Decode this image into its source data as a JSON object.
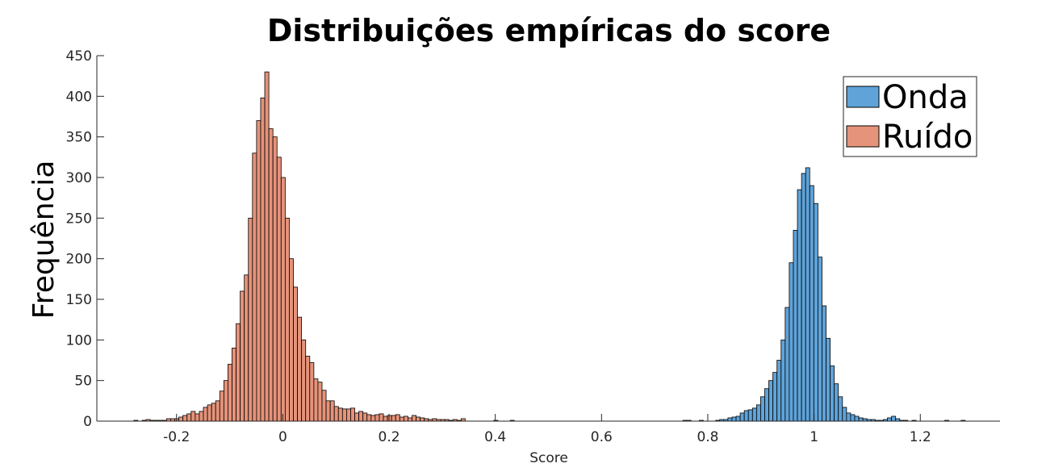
{
  "chart_data": {
    "type": "bar",
    "title": "Distribuições empíricas do score",
    "xlabel": "Score",
    "ylabel": "Frequência",
    "xlim": [
      -0.35,
      1.35
    ],
    "ylim": [
      0,
      450
    ],
    "xticks": [
      -0.2,
      0,
      0.2,
      0.4,
      0.6,
      0.8,
      1,
      1.2
    ],
    "xtick_labels": [
      "-0.2",
      "0",
      "0.2",
      "0.4",
      "0.6",
      "0.8",
      "1",
      "1.2"
    ],
    "yticks": [
      0,
      50,
      100,
      150,
      200,
      250,
      300,
      350,
      400,
      450
    ],
    "ytick_labels": [
      "0",
      "50",
      "100",
      "150",
      "200",
      "250",
      "300",
      "350",
      "400",
      "450"
    ],
    "grid": false,
    "legend_position": "top-right",
    "bin_width": 0.0077,
    "series": [
      {
        "name": "Onda",
        "color": "#5fa3d9",
        "x": [
          0.757,
          0.7647,
          0.7724,
          0.7801,
          0.7878,
          0.7955,
          0.8032,
          0.8109,
          0.8186,
          0.8263,
          0.834,
          0.8417,
          0.8494,
          0.8571,
          0.8648,
          0.8725,
          0.8802,
          0.8879,
          0.8956,
          0.9033,
          0.911,
          0.9187,
          0.9264,
          0.9341,
          0.9418,
          0.9495,
          0.9572,
          0.9649,
          0.9726,
          0.9803,
          0.988,
          0.9957,
          1.0034,
          1.0111,
          1.0188,
          1.0265,
          1.0342,
          1.0419,
          1.0496,
          1.0573,
          1.065,
          1.0727,
          1.0804,
          1.0881,
          1.0958,
          1.1035,
          1.1112,
          1.1189,
          1.1266,
          1.1343,
          1.142,
          1.1497,
          1.1574,
          1.1651,
          1.1728,
          1.1805,
          1.1882,
          1.1959,
          1.2036,
          1.2113,
          1.219,
          1.2267,
          1.2344,
          1.2421,
          1.2498,
          1.2575,
          1.2652,
          1.2729,
          1.2806
        ],
        "values": [
          1,
          1,
          0,
          0,
          1,
          0,
          0,
          0,
          1,
          2,
          2,
          4,
          5,
          6,
          10,
          13,
          14,
          16,
          20,
          30,
          40,
          50,
          60,
          75,
          100,
          140,
          195,
          235,
          285,
          305,
          312,
          290,
          268,
          202,
          142,
          102,
          68,
          46,
          30,
          17,
          10,
          8,
          6,
          4,
          3,
          2,
          2,
          1,
          1,
          2,
          4,
          6,
          3,
          1,
          1,
          0,
          1,
          0,
          0,
          0,
          0,
          0,
          0,
          0,
          1,
          0,
          0,
          0,
          1
        ]
      },
      {
        "name": "Ruído",
        "color": "#e5937a",
        "x": [
          -0.2765,
          -0.2688,
          -0.2611,
          -0.2534,
          -0.2457,
          -0.238,
          -0.2303,
          -0.2226,
          -0.2149,
          -0.2072,
          -0.1995,
          -0.1918,
          -0.1841,
          -0.1764,
          -0.1687,
          -0.161,
          -0.1533,
          -0.1456,
          -0.1379,
          -0.1302,
          -0.1225,
          -0.1148,
          -0.1071,
          -0.0994,
          -0.0917,
          -0.084,
          -0.0763,
          -0.0686,
          -0.0609,
          -0.0532,
          -0.0455,
          -0.0378,
          -0.0301,
          -0.0224,
          -0.0147,
          -0.007,
          0.0007,
          0.0084,
          0.0161,
          0.0238,
          0.0315,
          0.0392,
          0.0469,
          0.0546,
          0.0623,
          0.07,
          0.0777,
          0.0854,
          0.0931,
          0.1008,
          0.1085,
          0.1162,
          0.1239,
          0.1316,
          0.1393,
          0.147,
          0.1547,
          0.1624,
          0.1701,
          0.1778,
          0.1855,
          0.1932,
          0.2009,
          0.2086,
          0.2163,
          0.224,
          0.2317,
          0.2394,
          0.2471,
          0.2548,
          0.2625,
          0.2702,
          0.2779,
          0.2856,
          0.2933,
          0.301,
          0.3087,
          0.3164,
          0.3241,
          0.3318,
          0.3395,
          0.3472,
          0.3549,
          0.3626,
          0.3703,
          0.378,
          0.3857,
          0.3934,
          0.4011,
          0.4088,
          0.4165,
          0.4242,
          0.4319
        ],
        "values": [
          1,
          0,
          1,
          2,
          1,
          1,
          1,
          1,
          3,
          3,
          3,
          5,
          7,
          9,
          12,
          9,
          12,
          17,
          20,
          22,
          25,
          37,
          50,
          70,
          90,
          120,
          160,
          180,
          250,
          330,
          370,
          398,
          430,
          360,
          350,
          325,
          300,
          250,
          200,
          165,
          128,
          100,
          80,
          72,
          52,
          48,
          38,
          25,
          25,
          18,
          16,
          15,
          15,
          16,
          10,
          12,
          10,
          8,
          7,
          8,
          9,
          6,
          7,
          7,
          8,
          5,
          6,
          4,
          7,
          5,
          4,
          3,
          2,
          3,
          2,
          2,
          2,
          1,
          2,
          1,
          3,
          0,
          0,
          0,
          0,
          0,
          0,
          0,
          1,
          0,
          0,
          0,
          1
        ]
      }
    ]
  }
}
